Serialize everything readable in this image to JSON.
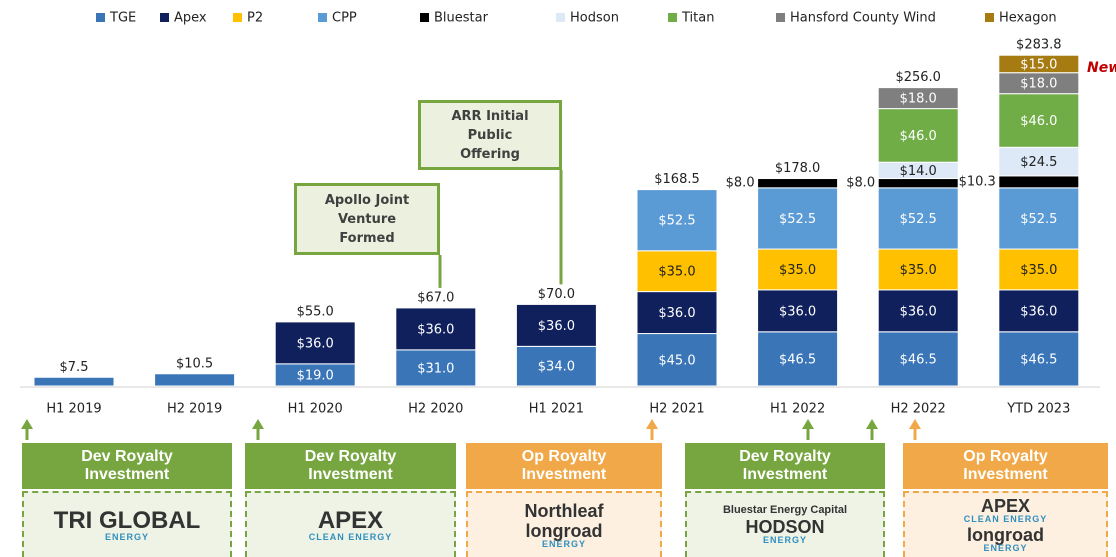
{
  "chart_data": {
    "type": "stacked_bar",
    "categories": [
      "H1 2019",
      "H2 2019",
      "H1 2020",
      "H2 2020",
      "H1 2021",
      "H2 2021",
      "H1 2022",
      "H2 2022",
      "YTD 2023"
    ],
    "ylim": [
      0,
      290
    ],
    "legend": "top",
    "series": [
      {
        "name": "TGE",
        "color": "#3a75b8",
        "values": [
          7.5,
          10.5,
          19.0,
          31.0,
          34.0,
          45.0,
          46.5,
          46.5,
          46.5
        ],
        "value_labels": [
          null,
          null,
          "$19.0",
          "$31.0",
          "$34.0",
          "$45.0",
          "$46.5",
          "$46.5",
          "$46.5"
        ]
      },
      {
        "name": "Apex",
        "color": "#10205c",
        "values": [
          null,
          null,
          36.0,
          36.0,
          36.0,
          36.0,
          36.0,
          36.0,
          36.0
        ],
        "value_labels": [
          null,
          null,
          "$36.0",
          "$36.0",
          "$36.0",
          "$36.0",
          "$36.0",
          "$36.0",
          "$36.0"
        ]
      },
      {
        "name": "P2",
        "color": "#ffc000",
        "values": [
          null,
          null,
          null,
          null,
          null,
          35.0,
          35.0,
          35.0,
          35.0
        ],
        "value_labels": [
          null,
          null,
          null,
          null,
          null,
          "$35.0",
          "$35.0",
          "$35.0",
          "$35.0"
        ]
      },
      {
        "name": "CPP",
        "color": "#5b9bd5",
        "values": [
          null,
          null,
          null,
          null,
          null,
          52.5,
          52.5,
          52.5,
          52.5
        ],
        "value_labels": [
          null,
          null,
          null,
          null,
          null,
          "$52.5",
          "$52.5",
          "$52.5",
          "$52.5"
        ]
      },
      {
        "name": "Bluestar",
        "color": "#000000",
        "values": [
          null,
          null,
          null,
          null,
          null,
          null,
          8.0,
          8.0,
          10.3
        ],
        "value_labels": [
          null,
          null,
          null,
          null,
          null,
          null,
          "$8.0",
          "$8.0",
          "$10.3"
        ]
      },
      {
        "name": "Hodson",
        "color": "#dde9f6",
        "values": [
          null,
          null,
          null,
          null,
          null,
          null,
          null,
          14.0,
          24.5
        ],
        "value_labels": [
          null,
          null,
          null,
          null,
          null,
          null,
          null,
          "$14.0",
          "$24.5"
        ]
      },
      {
        "name": "Titan",
        "color": "#70ad47",
        "values": [
          null,
          null,
          null,
          null,
          null,
          null,
          null,
          46.0,
          46.0
        ],
        "value_labels": [
          null,
          null,
          null,
          null,
          null,
          null,
          null,
          "$46.0",
          "$46.0"
        ]
      },
      {
        "name": "Hansford County Wind",
        "color": "#7f7f7f",
        "values": [
          null,
          null,
          null,
          null,
          null,
          null,
          null,
          18.0,
          18.0
        ],
        "value_labels": [
          null,
          null,
          null,
          null,
          null,
          null,
          null,
          "$18.0",
          "$18.0"
        ]
      },
      {
        "name": "Hexagon",
        "color": "#a67c12",
        "values": [
          null,
          null,
          null,
          null,
          null,
          null,
          null,
          null,
          15.0
        ],
        "value_labels": [
          null,
          null,
          null,
          null,
          null,
          null,
          null,
          null,
          "$15.0"
        ]
      }
    ],
    "totals": [
      7.5,
      10.5,
      55.0,
      67.0,
      70.0,
      168.5,
      178.0,
      256.0,
      283.8
    ],
    "total_labels": [
      "$7.5",
      "$10.5",
      "$55.0",
      "$67.0",
      "$70.0",
      "$168.5",
      "$178.0",
      "$256.0",
      "$283.8"
    ],
    "annotations": [
      "Apollo Joint Venture Formed",
      "ARR Initial Public Offering",
      "New"
    ]
  },
  "events": [
    {
      "title": "Dev Royalty Investment",
      "kind": "dev",
      "logos": [
        {
          "name": "TRI GLOBAL",
          "sub": "ENERGY"
        }
      ]
    },
    {
      "title": "Dev Royalty Investment",
      "kind": "dev",
      "logos": [
        {
          "name": "APEX",
          "sub": "CLEAN ENERGY"
        }
      ]
    },
    {
      "title": "Op Royalty Investment",
      "kind": "op",
      "logos": [
        {
          "name": "Northleaf"
        },
        {
          "name": "longroad",
          "sub": "ENERGY"
        }
      ]
    },
    {
      "title": "Dev Royalty Investment",
      "kind": "dev",
      "logos": [
        {
          "name": "Bluestar Energy Capital"
        },
        {
          "name": "HODSON",
          "sub": "ENERGY"
        }
      ]
    },
    {
      "title": "Op Royalty Investment",
      "kind": "op",
      "logos": [
        {
          "name": "APEX",
          "sub": "CLEAN ENERGY"
        },
        {
          "name": "longroad",
          "sub": "ENERGY"
        }
      ]
    }
  ]
}
